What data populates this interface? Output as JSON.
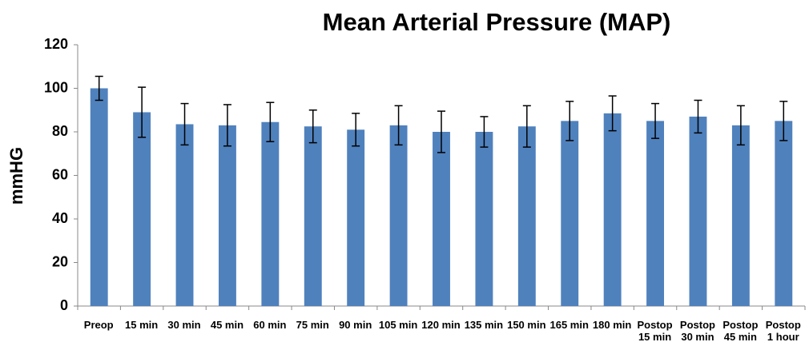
{
  "chart_data": {
    "type": "bar",
    "title": "Mean Arterial Pressure (MAP)",
    "y_label": "mmHG",
    "categories": [
      "Preop",
      "15 min",
      "30 min",
      "45 min",
      "60 min",
      "75 min",
      "90 min",
      "105 min",
      "120 min",
      "135 min",
      "150 min",
      "165 min",
      "180 min",
      "Postop 15 min",
      "Postop 30 min",
      "Postop 45 min",
      "Postop 1 hour"
    ],
    "values": [
      100,
      89,
      83.5,
      83,
      84.5,
      82.5,
      81,
      83,
      80,
      80,
      82.5,
      85,
      88.5,
      85,
      87,
      83,
      85
    ],
    "errors": [
      5.5,
      11.5,
      9.5,
      9.5,
      9,
      7.5,
      7.5,
      9,
      9.5,
      7,
      9.5,
      9,
      8,
      8,
      7.5,
      9,
      9
    ],
    "color": "#4f81bd",
    "ylim": [
      0,
      120
    ],
    "yticks": [
      0,
      20,
      40,
      60,
      80,
      100,
      120
    ],
    "grid": false
  }
}
